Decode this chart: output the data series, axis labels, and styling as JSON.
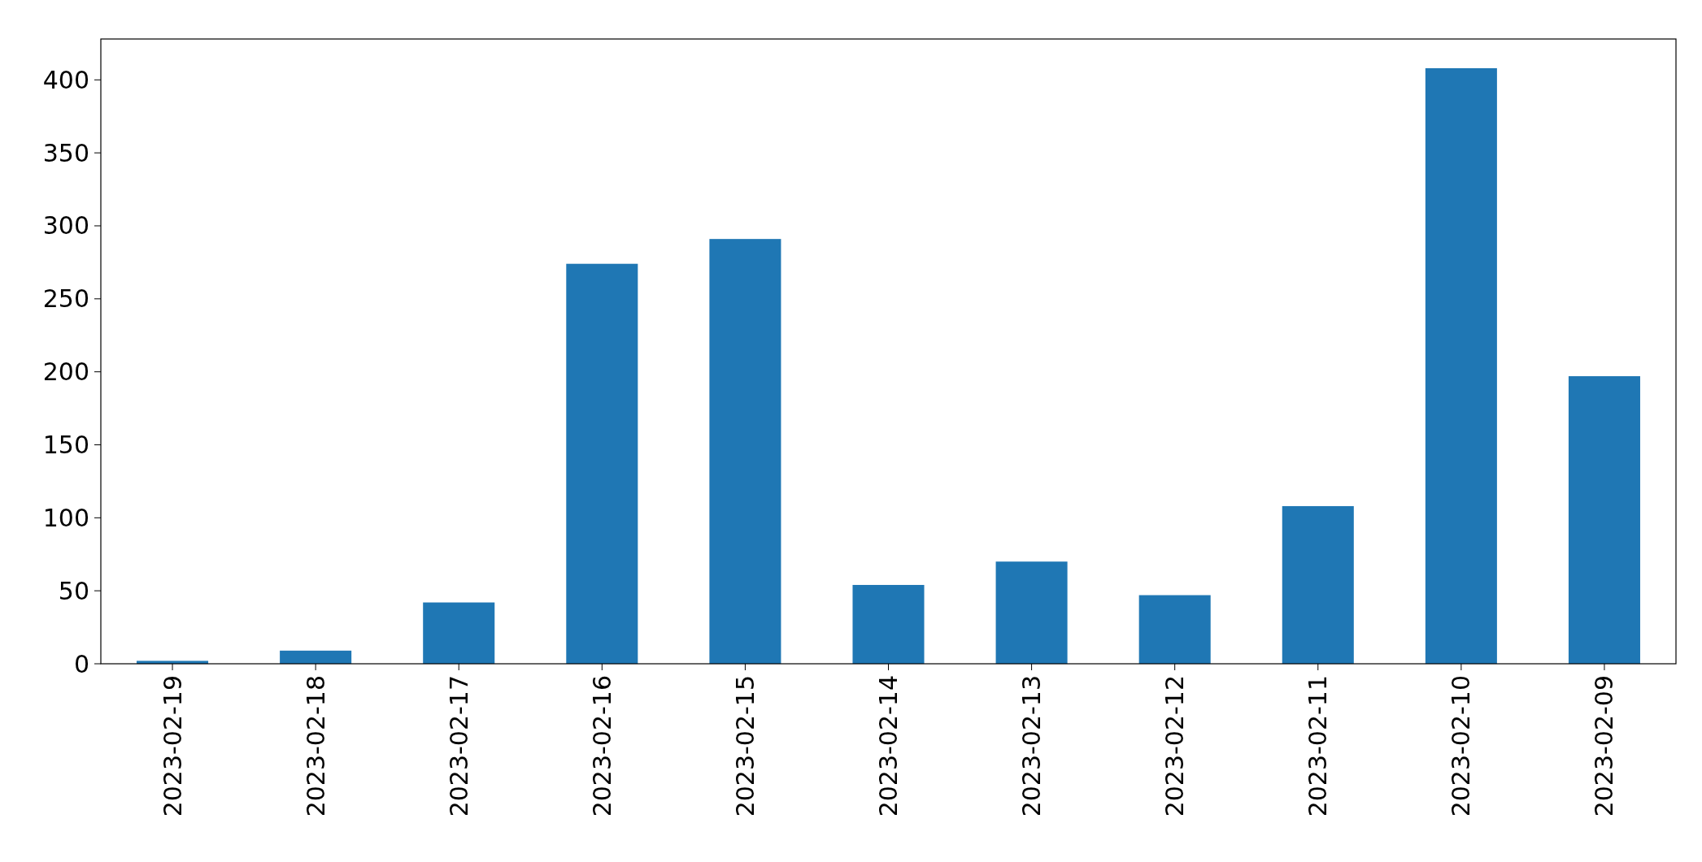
{
  "chart_data": {
    "type": "bar",
    "categories": [
      "2023-02-19",
      "2023-02-18",
      "2023-02-17",
      "2023-02-16",
      "2023-02-15",
      "2023-02-14",
      "2023-02-13",
      "2023-02-12",
      "2023-02-11",
      "2023-02-10",
      "2023-02-09"
    ],
    "values": [
      2,
      9,
      42,
      274,
      291,
      54,
      70,
      47,
      108,
      408,
      197
    ],
    "color": "#1f77b4",
    "ylim": [
      0,
      428
    ],
    "yticks": [
      0,
      50,
      100,
      150,
      200,
      250,
      300,
      350,
      400
    ]
  }
}
